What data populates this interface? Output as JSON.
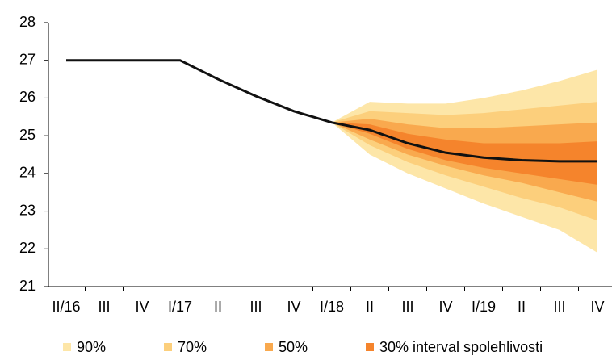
{
  "chart_data": {
    "type": "fan",
    "categories": [
      "II/16",
      "III",
      "IV",
      "I/17",
      "II",
      "III",
      "IV",
      "I/18",
      "II",
      "III",
      "IV",
      "I/19",
      "II",
      "III",
      "IV"
    ],
    "ylim": [
      21,
      28
    ],
    "yticks": [
      21,
      22,
      23,
      24,
      25,
      26,
      27,
      28
    ],
    "line": {
      "color": "#111111",
      "values": [
        27.0,
        27.0,
        27.0,
        27.0,
        26.5,
        26.05,
        25.65,
        25.35,
        25.15,
        24.8,
        24.55,
        24.42,
        24.35,
        24.32,
        24.32
      ]
    },
    "series": [
      {
        "name": "90%",
        "color": "#fde6a8",
        "upper": [
          null,
          null,
          null,
          null,
          null,
          null,
          null,
          25.35,
          25.9,
          25.85,
          25.85,
          26.0,
          26.2,
          26.45,
          26.75
        ],
        "lower": [
          null,
          null,
          null,
          null,
          null,
          null,
          null,
          25.35,
          24.5,
          24.0,
          23.6,
          23.2,
          22.85,
          22.5,
          21.9
        ]
      },
      {
        "name": "70%",
        "color": "#fccf7c",
        "upper": [
          null,
          null,
          null,
          null,
          null,
          null,
          null,
          25.35,
          25.65,
          25.6,
          25.55,
          25.6,
          25.7,
          25.8,
          25.9
        ],
        "lower": [
          null,
          null,
          null,
          null,
          null,
          null,
          null,
          25.35,
          24.75,
          24.3,
          23.95,
          23.65,
          23.35,
          23.1,
          22.75
        ]
      },
      {
        "name": "50%",
        "color": "#f9a94e",
        "upper": [
          null,
          null,
          null,
          null,
          null,
          null,
          null,
          25.35,
          25.45,
          25.3,
          25.2,
          25.2,
          25.25,
          25.3,
          25.35
        ],
        "lower": [
          null,
          null,
          null,
          null,
          null,
          null,
          null,
          25.35,
          24.9,
          24.5,
          24.2,
          23.95,
          23.75,
          23.5,
          23.25
        ]
      },
      {
        "name": "30% interval spolehlivosti",
        "color": "#f5842c",
        "upper": [
          null,
          null,
          null,
          null,
          null,
          null,
          null,
          25.35,
          25.3,
          25.05,
          24.9,
          24.8,
          24.8,
          24.8,
          24.85
        ],
        "lower": [
          null,
          null,
          null,
          null,
          null,
          null,
          null,
          25.35,
          25.05,
          24.65,
          24.35,
          24.15,
          24.0,
          23.85,
          23.7
        ]
      }
    ]
  }
}
